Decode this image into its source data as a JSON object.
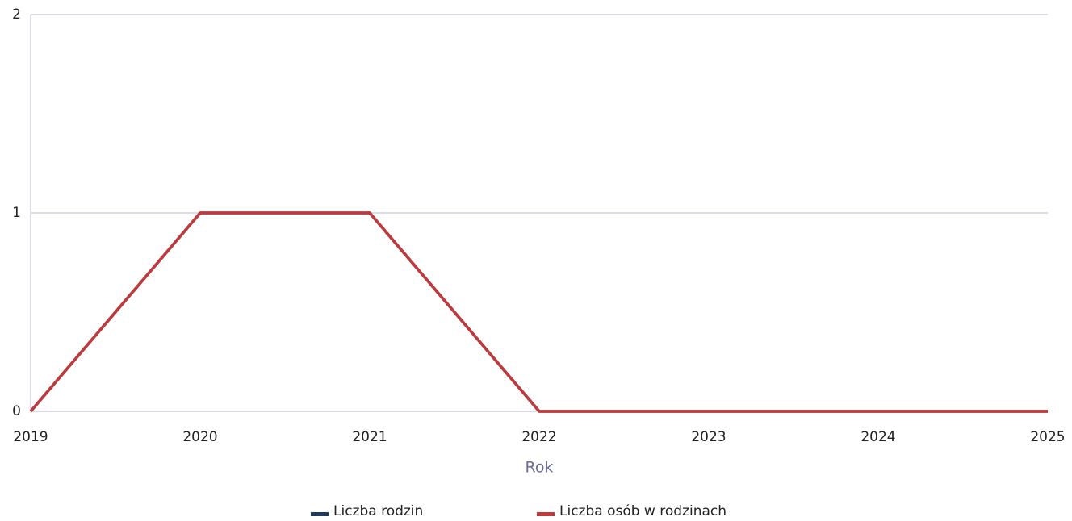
{
  "chart_data": {
    "type": "line",
    "x": [
      2019,
      2020,
      2021,
      2022,
      2023,
      2024,
      2025
    ],
    "series": [
      {
        "name": "Liczba rodzin",
        "color": "#1f3a5f",
        "values": [
          0,
          1,
          1,
          0,
          0,
          0,
          0
        ]
      },
      {
        "name": "Liczba osób w rodzinach",
        "color": "#c0393b",
        "values": [
          0,
          1,
          1,
          0,
          0,
          0,
          0
        ]
      }
    ],
    "xlabel": "Rok",
    "xlim": [
      2019,
      2025
    ],
    "xticks": [
      2019,
      2020,
      2021,
      2022,
      2023,
      2024,
      2025
    ],
    "ylim": [
      0,
      2
    ],
    "yticks": [
      0,
      1,
      2
    ],
    "grid": true,
    "legend": "bottom"
  }
}
